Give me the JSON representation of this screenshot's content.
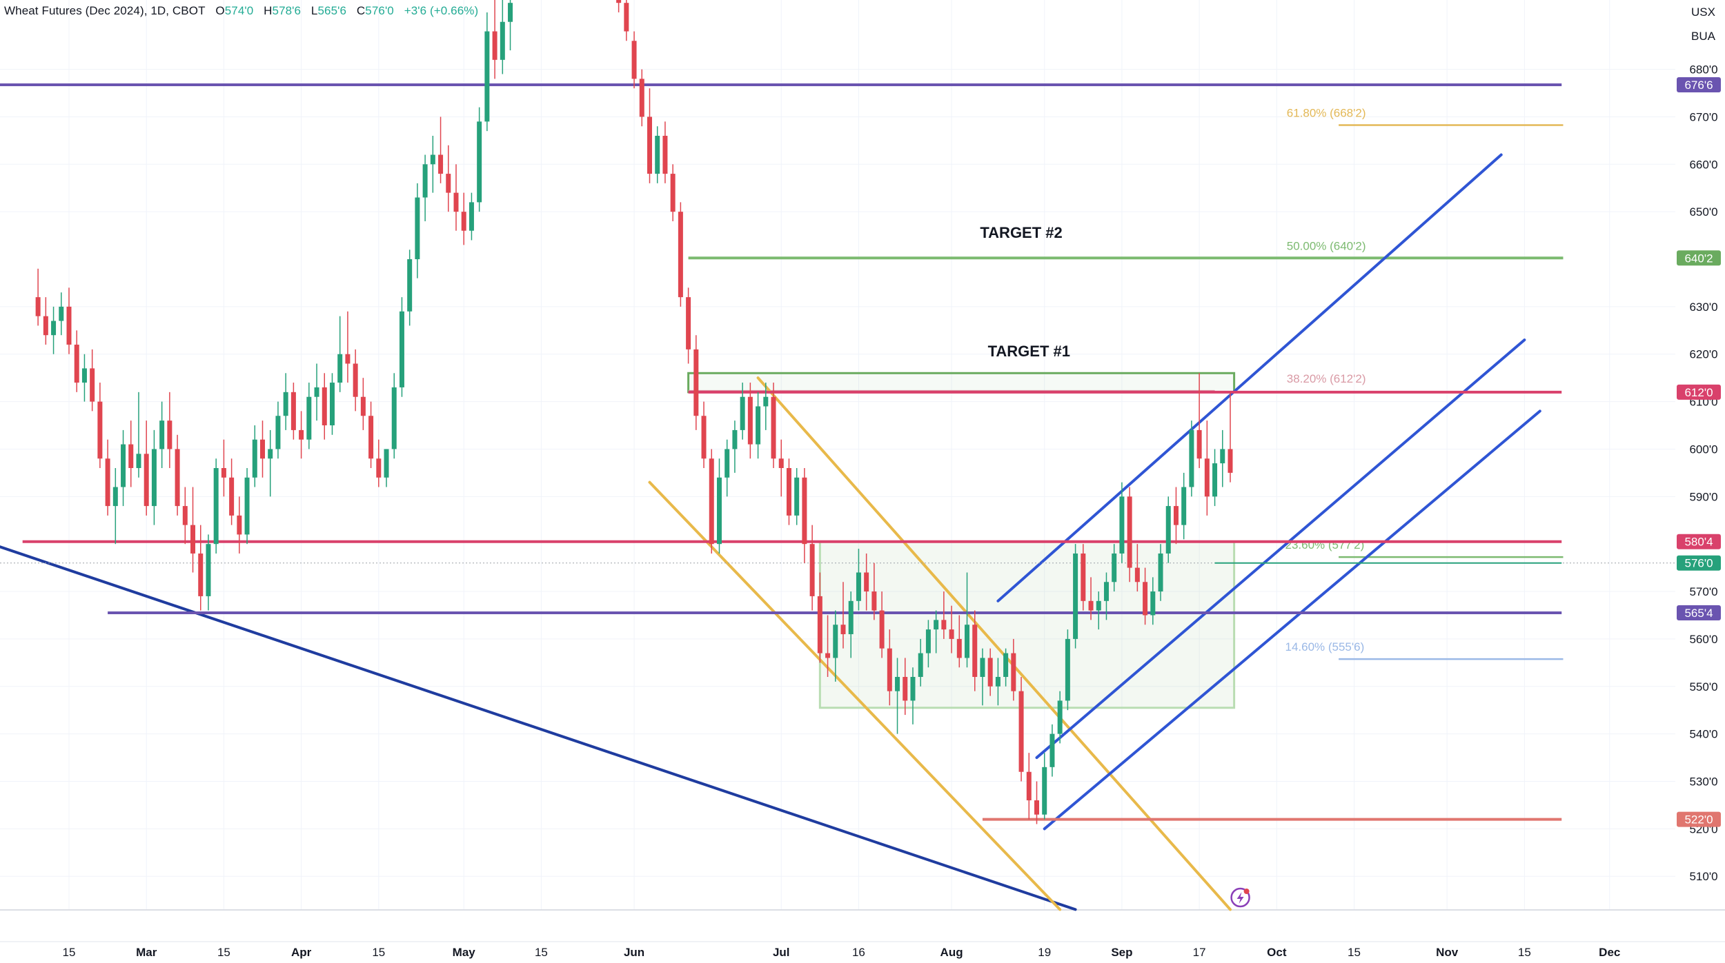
{
  "header": {
    "symbol": "Wheat Futures (Dec 2024), 1D, CBOT",
    "open_label": "O",
    "open": "574'0",
    "high_label": "H",
    "high": "578'6",
    "low_label": "L",
    "low": "565'6",
    "close_label": "C",
    "close": "576'0",
    "change": "+3'6 (+0.66%)"
  },
  "currency": {
    "unit": "USX",
    "unit2": "BUA"
  },
  "colors": {
    "up": "#26a17b",
    "down": "#e0454f",
    "blue": "#2f55d4",
    "navy": "#1f3c9f",
    "gold": "#e8b94a",
    "green": "#6aab5f",
    "pink": "#d9416b",
    "purple": "#6a54b0",
    "red_soft": "#e0766f",
    "fib_gold": "#e3b856",
    "fib_green": "#7cba70",
    "fib_pink": "#d99aa5",
    "fib_blue": "#9ab8e6"
  },
  "chart_data": {
    "type": "candlestick",
    "title": "Wheat Futures (Dec 2024), 1D, CBOT",
    "ylim": [
      502,
      697
    ],
    "y_ticks": [
      {
        "value": 510,
        "label": "510'0"
      },
      {
        "value": 520,
        "label": "520'0"
      },
      {
        "value": 530,
        "label": "530'0"
      },
      {
        "value": 540,
        "label": "540'0"
      },
      {
        "value": 550,
        "label": "550'0"
      },
      {
        "value": 560,
        "label": "560'0"
      },
      {
        "value": 570,
        "label": "570'0"
      },
      {
        "value": 590,
        "label": "590'0"
      },
      {
        "value": 600,
        "label": "600'0"
      },
      {
        "value": 610,
        "label": "610'0"
      },
      {
        "value": 620,
        "label": "620'0"
      },
      {
        "value": 630,
        "label": "630'0"
      },
      {
        "value": 650,
        "label": "650'0"
      },
      {
        "value": 660,
        "label": "660'0"
      },
      {
        "value": 670,
        "label": "670'0"
      },
      {
        "value": 680,
        "label": "680'0"
      }
    ],
    "x_ticks": [
      {
        "day": 0,
        "label": "15"
      },
      {
        "day": 10,
        "label": "Mar"
      },
      {
        "day": 20,
        "label": "15"
      },
      {
        "day": 30,
        "label": "Apr"
      },
      {
        "day": 40,
        "label": "15"
      },
      {
        "day": 51,
        "label": "May"
      },
      {
        "day": 61,
        "label": "15"
      },
      {
        "day": 73,
        "label": "Jun"
      },
      {
        "day": 92,
        "label": "Jul"
      },
      {
        "day": 102,
        "label": "16"
      },
      {
        "day": 114,
        "label": "Aug"
      },
      {
        "day": 126,
        "label": "19"
      },
      {
        "day": 136,
        "label": "Sep"
      },
      {
        "day": 146,
        "label": "17"
      },
      {
        "day": 156,
        "label": "Oct"
      },
      {
        "day": 166,
        "label": "15"
      },
      {
        "day": 178,
        "label": "Nov"
      },
      {
        "day": 188,
        "label": "15"
      },
      {
        "day": 199,
        "label": "Dec"
      }
    ],
    "candles": [
      {
        "d": -4,
        "o": 632,
        "h": 638,
        "l": 626,
        "c": 628
      },
      {
        "d": -3,
        "o": 628,
        "h": 632,
        "l": 622,
        "c": 624
      },
      {
        "d": -2,
        "o": 624,
        "h": 630,
        "l": 620,
        "c": 627
      },
      {
        "d": -1,
        "o": 627,
        "h": 633,
        "l": 624,
        "c": 630
      },
      {
        "d": 0,
        "o": 630,
        "h": 634,
        "l": 620,
        "c": 622
      },
      {
        "d": 1,
        "o": 622,
        "h": 625,
        "l": 612,
        "c": 614
      },
      {
        "d": 2,
        "o": 614,
        "h": 620,
        "l": 610,
        "c": 617
      },
      {
        "d": 3,
        "o": 617,
        "h": 621,
        "l": 608,
        "c": 610
      },
      {
        "d": 4,
        "o": 610,
        "h": 614,
        "l": 596,
        "c": 598
      },
      {
        "d": 5,
        "o": 598,
        "h": 602,
        "l": 586,
        "c": 588
      },
      {
        "d": 6,
        "o": 588,
        "h": 596,
        "l": 580,
        "c": 592
      },
      {
        "d": 7,
        "o": 592,
        "h": 604,
        "l": 588,
        "c": 601
      },
      {
        "d": 8,
        "o": 601,
        "h": 606,
        "l": 592,
        "c": 596
      },
      {
        "d": 9,
        "o": 596,
        "h": 612,
        "l": 594,
        "c": 599
      },
      {
        "d": 10,
        "o": 599,
        "h": 606,
        "l": 586,
        "c": 588
      },
      {
        "d": 11,
        "o": 588,
        "h": 604,
        "l": 584,
        "c": 600
      },
      {
        "d": 12,
        "o": 600,
        "h": 610,
        "l": 596,
        "c": 606
      },
      {
        "d": 13,
        "o": 606,
        "h": 612,
        "l": 596,
        "c": 600
      },
      {
        "d": 14,
        "o": 600,
        "h": 603,
        "l": 586,
        "c": 588
      },
      {
        "d": 15,
        "o": 588,
        "h": 592,
        "l": 580,
        "c": 584
      },
      {
        "d": 16,
        "o": 584,
        "h": 592,
        "l": 574,
        "c": 578
      },
      {
        "d": 17,
        "o": 578,
        "h": 584,
        "l": 566,
        "c": 569
      },
      {
        "d": 18,
        "o": 569,
        "h": 582,
        "l": 566,
        "c": 580
      },
      {
        "d": 19,
        "o": 580,
        "h": 598,
        "l": 578,
        "c": 596
      },
      {
        "d": 20,
        "o": 596,
        "h": 602,
        "l": 590,
        "c": 594
      },
      {
        "d": 21,
        "o": 594,
        "h": 598,
        "l": 584,
        "c": 586
      },
      {
        "d": 22,
        "o": 586,
        "h": 590,
        "l": 578,
        "c": 582
      },
      {
        "d": 23,
        "o": 582,
        "h": 596,
        "l": 580,
        "c": 594
      },
      {
        "d": 24,
        "o": 594,
        "h": 605,
        "l": 592,
        "c": 602
      },
      {
        "d": 25,
        "o": 602,
        "h": 606,
        "l": 594,
        "c": 598
      },
      {
        "d": 26,
        "o": 598,
        "h": 604,
        "l": 590,
        "c": 600
      },
      {
        "d": 27,
        "o": 600,
        "h": 610,
        "l": 598,
        "c": 607
      },
      {
        "d": 28,
        "o": 607,
        "h": 616,
        "l": 604,
        "c": 612
      },
      {
        "d": 29,
        "o": 612,
        "h": 614,
        "l": 602,
        "c": 604
      },
      {
        "d": 30,
        "o": 604,
        "h": 608,
        "l": 598,
        "c": 602
      },
      {
        "d": 31,
        "o": 602,
        "h": 614,
        "l": 600,
        "c": 611
      },
      {
        "d": 32,
        "o": 611,
        "h": 618,
        "l": 606,
        "c": 613
      },
      {
        "d": 33,
        "o": 613,
        "h": 616,
        "l": 602,
        "c": 605
      },
      {
        "d": 34,
        "o": 605,
        "h": 616,
        "l": 603,
        "c": 614
      },
      {
        "d": 35,
        "o": 614,
        "h": 628,
        "l": 612,
        "c": 620
      },
      {
        "d": 36,
        "o": 620,
        "h": 629,
        "l": 614,
        "c": 618
      },
      {
        "d": 37,
        "o": 618,
        "h": 621,
        "l": 608,
        "c": 611
      },
      {
        "d": 38,
        "o": 611,
        "h": 615,
        "l": 604,
        "c": 607
      },
      {
        "d": 39,
        "o": 607,
        "h": 610,
        "l": 596,
        "c": 598
      },
      {
        "d": 40,
        "o": 598,
        "h": 602,
        "l": 592,
        "c": 594
      },
      {
        "d": 41,
        "o": 594,
        "h": 600,
        "l": 592,
        "c": 600
      },
      {
        "d": 42,
        "o": 600,
        "h": 616,
        "l": 598,
        "c": 613
      },
      {
        "d": 43,
        "o": 613,
        "h": 632,
        "l": 611,
        "c": 629
      },
      {
        "d": 44,
        "o": 629,
        "h": 642,
        "l": 626,
        "c": 640
      },
      {
        "d": 45,
        "o": 640,
        "h": 656,
        "l": 636,
        "c": 653
      },
      {
        "d": 46,
        "o": 653,
        "h": 662,
        "l": 648,
        "c": 660
      },
      {
        "d": 47,
        "o": 660,
        "h": 666,
        "l": 654,
        "c": 662
      },
      {
        "d": 48,
        "o": 662,
        "h": 670,
        "l": 656,
        "c": 658
      },
      {
        "d": 49,
        "o": 658,
        "h": 664,
        "l": 650,
        "c": 654
      },
      {
        "d": 50,
        "o": 654,
        "h": 660,
        "l": 646,
        "c": 650
      },
      {
        "d": 51,
        "o": 650,
        "h": 654,
        "l": 643,
        "c": 646
      },
      {
        "d": 52,
        "o": 646,
        "h": 654,
        "l": 644,
        "c": 652
      },
      {
        "d": 53,
        "o": 652,
        "h": 672,
        "l": 650,
        "c": 669
      },
      {
        "d": 54,
        "o": 669,
        "h": 692,
        "l": 667,
        "c": 688
      },
      {
        "d": 55,
        "o": 688,
        "h": 697,
        "l": 678,
        "c": 682
      },
      {
        "d": 56,
        "o": 682,
        "h": 697,
        "l": 679,
        "c": 690
      },
      {
        "d": 57,
        "o": 690,
        "h": 697,
        "l": 684,
        "c": 694
      },
      {
        "d": 71,
        "o": 697,
        "h": 697,
        "l": 692,
        "c": 694
      },
      {
        "d": 72,
        "o": 694,
        "h": 697,
        "l": 686,
        "c": 688
      },
      {
        "d": 73,
        "o": 686,
        "h": 688,
        "l": 676,
        "c": 678
      },
      {
        "d": 74,
        "o": 678,
        "h": 680,
        "l": 668,
        "c": 670
      },
      {
        "d": 75,
        "o": 670,
        "h": 676,
        "l": 656,
        "c": 658
      },
      {
        "d": 76,
        "o": 658,
        "h": 668,
        "l": 656,
        "c": 666
      },
      {
        "d": 77,
        "o": 666,
        "h": 669,
        "l": 656,
        "c": 658
      },
      {
        "d": 78,
        "o": 658,
        "h": 660,
        "l": 648,
        "c": 650
      },
      {
        "d": 79,
        "o": 650,
        "h": 652,
        "l": 630,
        "c": 632
      },
      {
        "d": 80,
        "o": 632,
        "h": 634,
        "l": 618,
        "c": 621
      },
      {
        "d": 81,
        "o": 621,
        "h": 624,
        "l": 604,
        "c": 607
      },
      {
        "d": 82,
        "o": 607,
        "h": 610,
        "l": 596,
        "c": 598
      },
      {
        "d": 83,
        "o": 598,
        "h": 600,
        "l": 578,
        "c": 580
      },
      {
        "d": 84,
        "o": 580,
        "h": 598,
        "l": 578,
        "c": 594
      },
      {
        "d": 85,
        "o": 594,
        "h": 602,
        "l": 590,
        "c": 600
      },
      {
        "d": 86,
        "o": 600,
        "h": 606,
        "l": 595,
        "c": 604
      },
      {
        "d": 87,
        "o": 604,
        "h": 614,
        "l": 602,
        "c": 611
      },
      {
        "d": 88,
        "o": 611,
        "h": 614,
        "l": 598,
        "c": 601
      },
      {
        "d": 89,
        "o": 601,
        "h": 612,
        "l": 598,
        "c": 609
      },
      {
        "d": 90,
        "o": 609,
        "h": 614,
        "l": 604,
        "c": 611
      },
      {
        "d": 91,
        "o": 611,
        "h": 614,
        "l": 596,
        "c": 598
      },
      {
        "d": 92,
        "o": 598,
        "h": 602,
        "l": 590,
        "c": 596
      },
      {
        "d": 93,
        "o": 596,
        "h": 598,
        "l": 584,
        "c": 586
      },
      {
        "d": 94,
        "o": 586,
        "h": 596,
        "l": 584,
        "c": 594
      },
      {
        "d": 95,
        "o": 594,
        "h": 596,
        "l": 576,
        "c": 580
      },
      {
        "d": 96,
        "o": 580,
        "h": 584,
        "l": 566,
        "c": 569
      },
      {
        "d": 97,
        "o": 569,
        "h": 574,
        "l": 555,
        "c": 557
      },
      {
        "d": 98,
        "o": 557,
        "h": 565,
        "l": 552,
        "c": 556
      },
      {
        "d": 99,
        "o": 556,
        "h": 566,
        "l": 551,
        "c": 563
      },
      {
        "d": 100,
        "o": 563,
        "h": 572,
        "l": 558,
        "c": 561
      },
      {
        "d": 101,
        "o": 561,
        "h": 570,
        "l": 556,
        "c": 568
      },
      {
        "d": 102,
        "o": 568,
        "h": 579,
        "l": 566,
        "c": 574
      },
      {
        "d": 103,
        "o": 574,
        "h": 578,
        "l": 566,
        "c": 570
      },
      {
        "d": 104,
        "o": 570,
        "h": 576,
        "l": 564,
        "c": 566
      },
      {
        "d": 105,
        "o": 566,
        "h": 570,
        "l": 556,
        "c": 558
      },
      {
        "d": 106,
        "o": 558,
        "h": 562,
        "l": 546,
        "c": 549
      },
      {
        "d": 107,
        "o": 549,
        "h": 556,
        "l": 540,
        "c": 552
      },
      {
        "d": 108,
        "o": 552,
        "h": 556,
        "l": 544,
        "c": 547
      },
      {
        "d": 109,
        "o": 547,
        "h": 554,
        "l": 542,
        "c": 552
      },
      {
        "d": 110,
        "o": 552,
        "h": 560,
        "l": 550,
        "c": 557
      },
      {
        "d": 111,
        "o": 557,
        "h": 564,
        "l": 554,
        "c": 562
      },
      {
        "d": 112,
        "o": 562,
        "h": 566,
        "l": 557,
        "c": 564
      },
      {
        "d": 113,
        "o": 564,
        "h": 570,
        "l": 560,
        "c": 562
      },
      {
        "d": 114,
        "o": 562,
        "h": 567,
        "l": 557,
        "c": 560
      },
      {
        "d": 115,
        "o": 560,
        "h": 565,
        "l": 554,
        "c": 556
      },
      {
        "d": 116,
        "o": 556,
        "h": 574,
        "l": 554,
        "c": 563
      },
      {
        "d": 117,
        "o": 563,
        "h": 566,
        "l": 549,
        "c": 552
      },
      {
        "d": 118,
        "o": 552,
        "h": 558,
        "l": 546,
        "c": 556
      },
      {
        "d": 119,
        "o": 556,
        "h": 558,
        "l": 548,
        "c": 550
      },
      {
        "d": 120,
        "o": 550,
        "h": 556,
        "l": 546,
        "c": 552
      },
      {
        "d": 121,
        "o": 552,
        "h": 558,
        "l": 550,
        "c": 557
      },
      {
        "d": 122,
        "o": 557,
        "h": 560,
        "l": 547,
        "c": 549
      },
      {
        "d": 123,
        "o": 549,
        "h": 552,
        "l": 530,
        "c": 532
      },
      {
        "d": 124,
        "o": 532,
        "h": 536,
        "l": 522,
        "c": 526
      },
      {
        "d": 125,
        "o": 526,
        "h": 530,
        "l": 521,
        "c": 523
      },
      {
        "d": 126,
        "o": 523,
        "h": 536,
        "l": 522,
        "c": 533
      },
      {
        "d": 127,
        "o": 533,
        "h": 542,
        "l": 531,
        "c": 540
      },
      {
        "d": 128,
        "o": 540,
        "h": 549,
        "l": 538,
        "c": 547
      },
      {
        "d": 129,
        "o": 547,
        "h": 562,
        "l": 545,
        "c": 560
      },
      {
        "d": 130,
        "o": 560,
        "h": 580,
        "l": 558,
        "c": 578
      },
      {
        "d": 131,
        "o": 578,
        "h": 580,
        "l": 566,
        "c": 568
      },
      {
        "d": 132,
        "o": 568,
        "h": 573,
        "l": 564,
        "c": 566
      },
      {
        "d": 133,
        "o": 566,
        "h": 570,
        "l": 562,
        "c": 568
      },
      {
        "d": 134,
        "o": 568,
        "h": 574,
        "l": 564,
        "c": 572
      },
      {
        "d": 135,
        "o": 572,
        "h": 580,
        "l": 570,
        "c": 578
      },
      {
        "d": 136,
        "o": 578,
        "h": 593,
        "l": 576,
        "c": 590
      },
      {
        "d": 137,
        "o": 590,
        "h": 592,
        "l": 572,
        "c": 575
      },
      {
        "d": 138,
        "o": 575,
        "h": 580,
        "l": 570,
        "c": 572
      },
      {
        "d": 139,
        "o": 572,
        "h": 575,
        "l": 563,
        "c": 565
      },
      {
        "d": 140,
        "o": 565,
        "h": 573,
        "l": 563,
        "c": 570
      },
      {
        "d": 141,
        "o": 570,
        "h": 580,
        "l": 568,
        "c": 578
      },
      {
        "d": 142,
        "o": 578,
        "h": 590,
        "l": 576,
        "c": 588
      },
      {
        "d": 143,
        "o": 588,
        "h": 592,
        "l": 580,
        "c": 584
      },
      {
        "d": 144,
        "o": 584,
        "h": 595,
        "l": 581,
        "c": 592
      },
      {
        "d": 145,
        "o": 592,
        "h": 606,
        "l": 590,
        "c": 604
      },
      {
        "d": 146,
        "o": 604,
        "h": 616,
        "l": 596,
        "c": 598
      },
      {
        "d": 147,
        "o": 598,
        "h": 606,
        "l": 586,
        "c": 590
      },
      {
        "d": 148,
        "o": 590,
        "h": 600,
        "l": 588,
        "c": 597
      },
      {
        "d": 149,
        "o": 597,
        "h": 604,
        "l": 592,
        "c": 600
      },
      {
        "d": 150,
        "o": 600,
        "h": 612,
        "l": 593,
        "c": 595
      }
    ],
    "levels": [
      {
        "name": "676'6",
        "value": 676.75,
        "color": "purple"
      },
      {
        "name": "640'2",
        "value": 640.25,
        "color": "green"
      },
      {
        "name": "612'0",
        "value": 612.0,
        "color": "pink"
      },
      {
        "name": "580'4",
        "value": 580.5,
        "color": "pink"
      },
      {
        "name": "576'0",
        "value": 576.0,
        "color": "up"
      },
      {
        "name": "565'4",
        "value": 565.5,
        "color": "purple"
      },
      {
        "name": "522'0",
        "value": 522.0,
        "color": "red_soft"
      }
    ],
    "fib_levels": [
      {
        "label": "61.80% (668'2)",
        "value": 668.25,
        "color": "fib_gold"
      },
      {
        "label": "50.00% (640'2)",
        "value": 640.25,
        "color": "fib_green"
      },
      {
        "label": "38.20% (612'2)",
        "value": 612.25,
        "color": "fib_pink"
      },
      {
        "label": "23.60% (577'2)",
        "value": 577.25,
        "color": "fib_green"
      },
      {
        "label": "14.60% (555'6)",
        "value": 555.75,
        "color": "fib_blue"
      }
    ],
    "annotations": [
      {
        "text": "TARGET #2",
        "day": 123,
        "value": 644.5
      },
      {
        "text": "TARGET #1",
        "day": 124,
        "value": 619.5
      }
    ]
  }
}
